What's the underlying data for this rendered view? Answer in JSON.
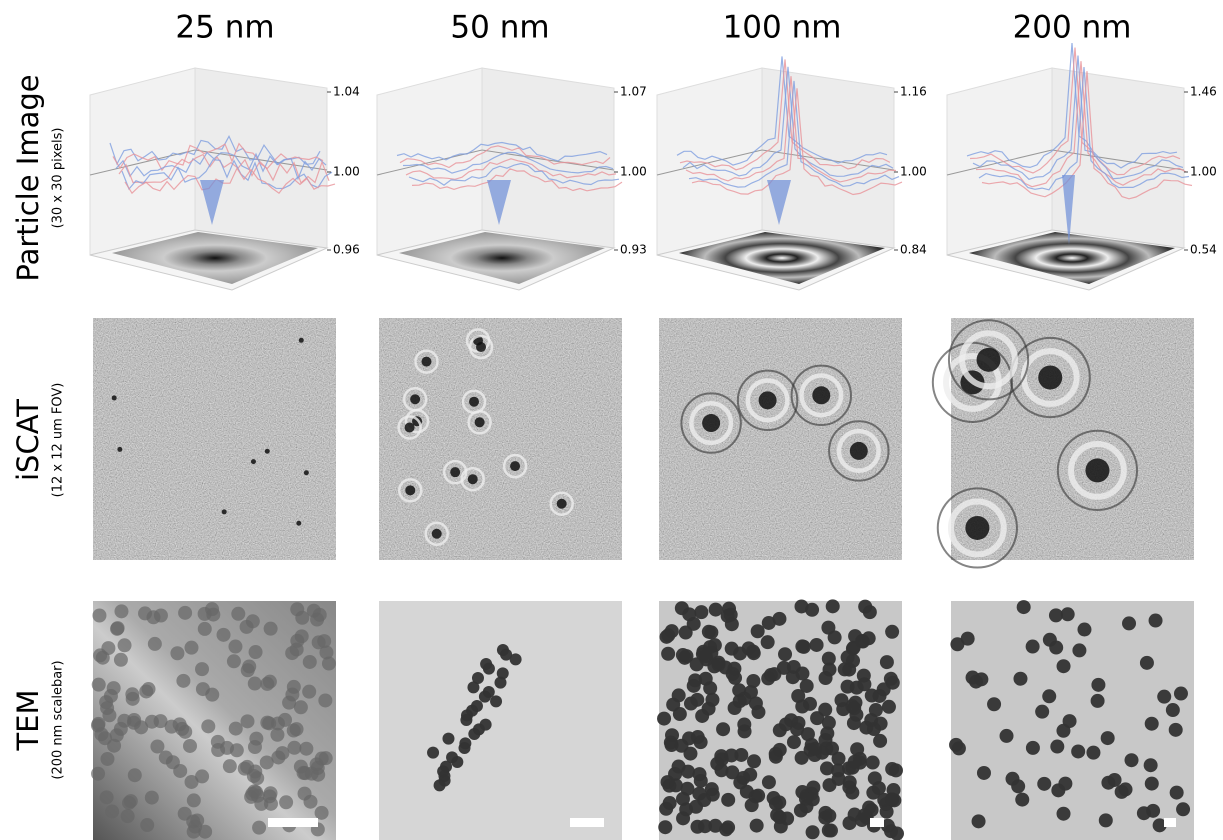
{
  "columns": [
    "25 nm",
    "50 nm",
    "100 nm",
    "200 nm"
  ],
  "rows": [
    {
      "label": "Particle Image",
      "sublabel": "(30 x 30 pixels)"
    },
    {
      "label": "iSCAT",
      "sublabel": "(12 x 12 um FOV)"
    },
    {
      "label": "TEM",
      "sublabel": "(200 nm scalebar)"
    }
  ],
  "plots": [
    {
      "ticks": [
        "1.04",
        "1.00",
        "0.96"
      ]
    },
    {
      "ticks": [
        "1.07",
        "1.00",
        "0.93"
      ]
    },
    {
      "ticks": [
        "1.16",
        "1.00",
        "0.84"
      ]
    },
    {
      "ticks": [
        "1.46",
        "1.00",
        "0.54"
      ]
    }
  ]
}
